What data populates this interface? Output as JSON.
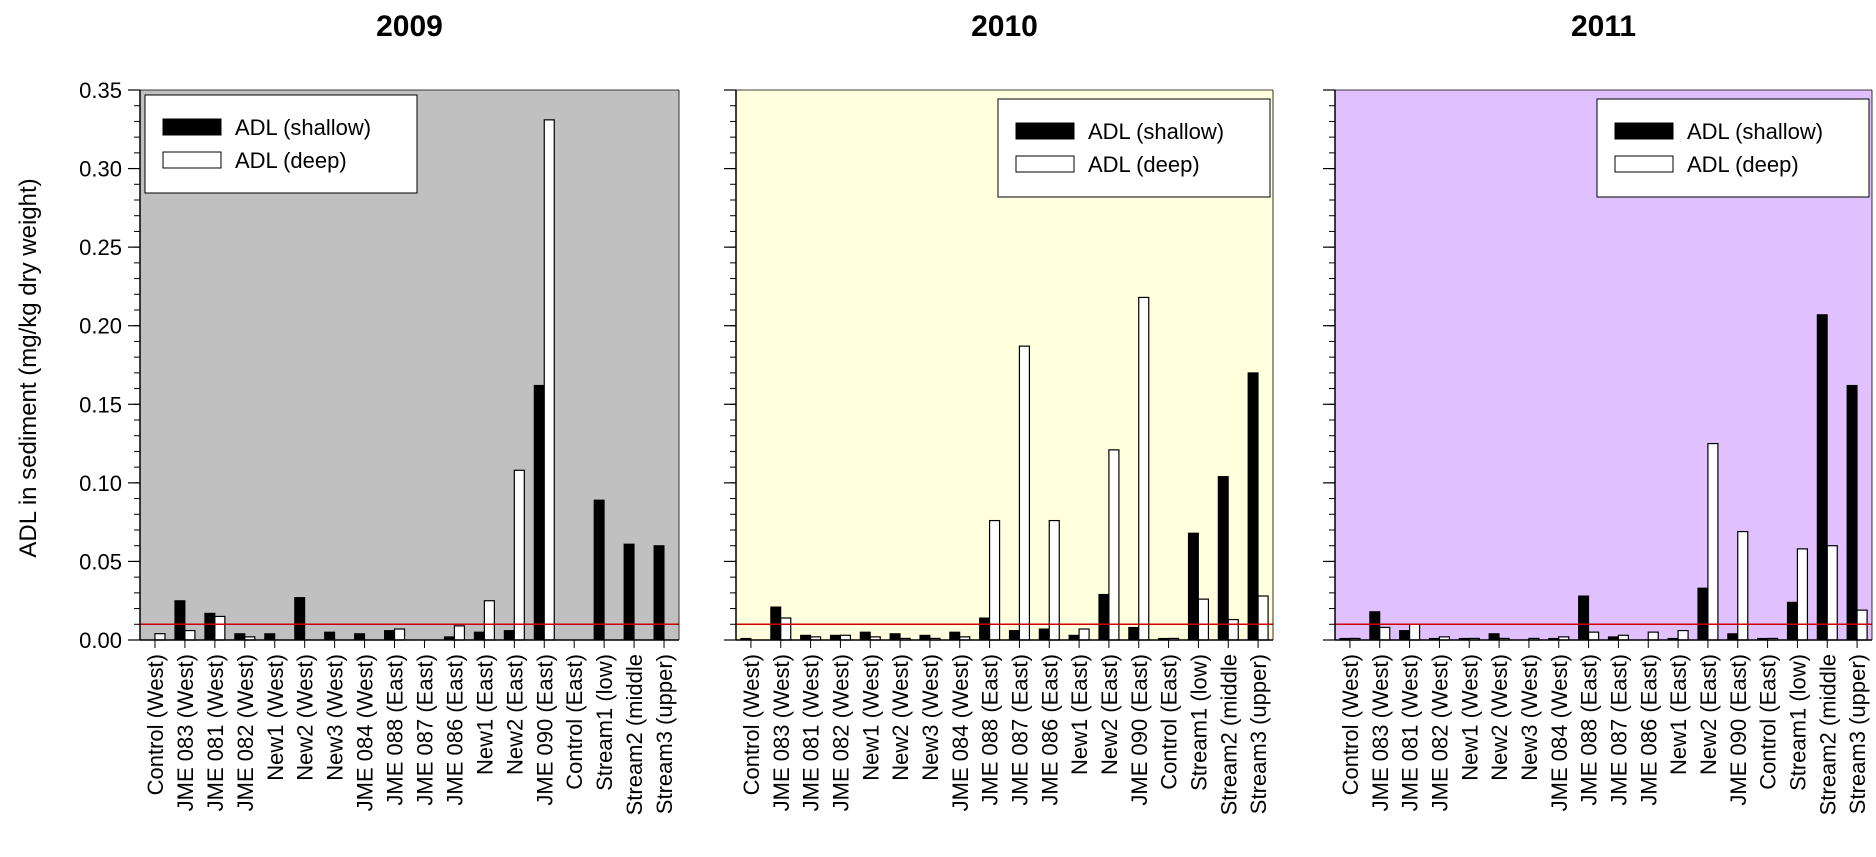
{
  "figure": {
    "ylabel": "ADL in sediment (mg/kg dry weight)",
    "legend": {
      "shallow_label": "ADL (shallow)",
      "deep_label": "ADL (deep)"
    },
    "threshold_color": "#cc0000"
  },
  "chart_data": [
    {
      "type": "bar",
      "title": "2009",
      "background": "#c0c0c0",
      "legend_position": "top-left",
      "ylim": [
        0,
        0.35
      ],
      "yticks": [
        "0.00",
        "0.05",
        "0.10",
        "0.15",
        "0.20",
        "0.25",
        "0.30",
        "0.35"
      ],
      "threshold": 0.01,
      "categories": [
        "Control (West)",
        "JME 083 (West)",
        "JME 081 (West)",
        "JME 082 (West)",
        "New1 (West)",
        "New2 (West)",
        "New3 (West)",
        "JME 084 (West)",
        "JME 088 (East)",
        "JME 087 (East)",
        "JME 086 (East)",
        "New1 (East)",
        "New2 (East)",
        "JME 090 (East)",
        "Control (East)",
        "Stream1 (low)",
        "Stream2 (middle",
        "Stream3 (upper)"
      ],
      "series": [
        {
          "name": "ADL (shallow)",
          "values": [
            0,
            0.025,
            0.017,
            0.004,
            0.004,
            0.027,
            0.005,
            0.004,
            0.006,
            0,
            0.002,
            0.005,
            0.006,
            0.162,
            0,
            0.089,
            0.061,
            0.06
          ]
        },
        {
          "name": "ADL (deep)",
          "values": [
            0.004,
            0.006,
            0.015,
            0.002,
            0,
            0,
            0,
            0,
            0.007,
            0,
            0.009,
            0.025,
            0.108,
            0.331,
            0,
            0,
            0,
            0
          ]
        }
      ]
    },
    {
      "type": "bar",
      "title": "2010",
      "background": "#ffffdd",
      "legend_position": "top-right",
      "ylim": [
        0,
        0.35
      ],
      "threshold": 0.01,
      "categories": [
        "Control (West)",
        "JME 083 (West)",
        "JME 081 (West)",
        "JME 082 (West)",
        "New1 (West)",
        "New2 (West)",
        "New3 (West)",
        "JME 084 (West)",
        "JME 088 (East)",
        "JME 087 (East)",
        "JME 086 (East)",
        "New1 (East)",
        "New2 (East)",
        "JME 090 (East)",
        "Control (East)",
        "Stream1 (low)",
        "Stream2 (middle",
        "Stream3 (upper)"
      ],
      "series": [
        {
          "name": "ADL (shallow)",
          "values": [
            0.001,
            0.021,
            0.003,
            0.003,
            0.005,
            0.004,
            0.003,
            0.005,
            0.014,
            0.006,
            0.007,
            0.003,
            0.029,
            0.008,
            0.001,
            0.068,
            0.104,
            0.17
          ]
        },
        {
          "name": "ADL (deep)",
          "values": [
            0,
            0.014,
            0.002,
            0.003,
            0.002,
            0.001,
            0.001,
            0.002,
            0.076,
            0.187,
            0.076,
            0.007,
            0.121,
            0.218,
            0.001,
            0.026,
            0.013,
            0.028
          ]
        }
      ]
    },
    {
      "type": "bar",
      "title": "2011",
      "background": "#e0c0ff",
      "legend_position": "top-right",
      "ylim": [
        0,
        0.35
      ],
      "threshold": 0.01,
      "categories": [
        "Control (West)",
        "JME 083 (West)",
        "JME 081 (West)",
        "JME 082 (West)",
        "New1 (West)",
        "New2 (West)",
        "New3 (West)",
        "JME 084 (West)",
        "JME 088 (East)",
        "JME 087 (East)",
        "JME 086 (East)",
        "New1 (East)",
        "New2 (East)",
        "JME 090 (East)",
        "Control (East)",
        "Stream1 (low)",
        "Stream2 (middle",
        "Stream3 (upper)"
      ],
      "series": [
        {
          "name": "ADL (shallow)",
          "values": [
            0.001,
            0.018,
            0.006,
            0.001,
            0.001,
            0.004,
            0,
            0.001,
            0.028,
            0.002,
            0,
            0.001,
            0.033,
            0.004,
            0.001,
            0.024,
            0.207,
            0.162
          ]
        },
        {
          "name": "ADL (deep)",
          "values": [
            0.001,
            0.008,
            0.01,
            0.002,
            0.001,
            0.001,
            0.001,
            0.002,
            0.005,
            0.003,
            0.005,
            0.006,
            0.125,
            0.069,
            0.001,
            0.058,
            0.06,
            0.019
          ]
        }
      ]
    }
  ]
}
